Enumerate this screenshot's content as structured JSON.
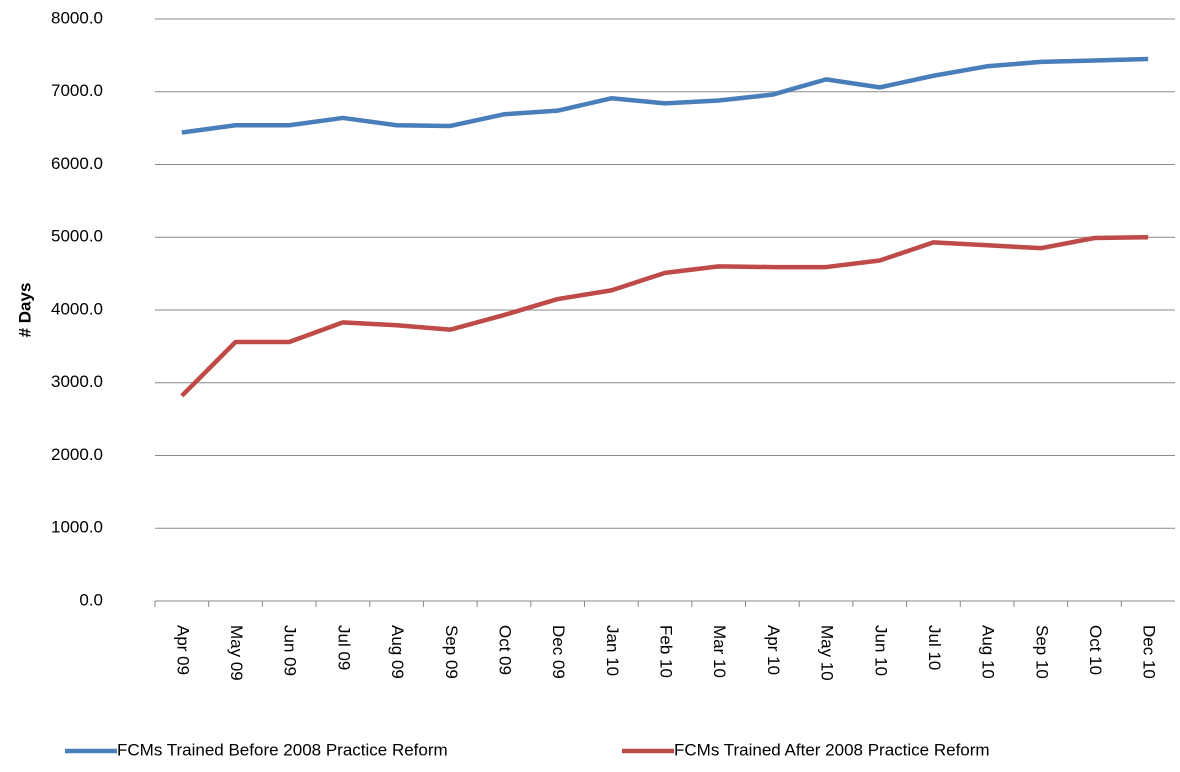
{
  "chart_data": {
    "type": "line",
    "y_label": "# Days",
    "categories": [
      "Apr 09",
      "May 09",
      "Jun 09",
      "Jul 09",
      "Aug 09",
      "Sep 09",
      "Oct 09",
      "Dec 09",
      "Jan 10",
      "Feb 10",
      "Mar 10",
      "Apr 10",
      "May 10",
      "Jun 10",
      "Jul 10",
      "Aug 10",
      "Sep 10",
      "Oct 10",
      "Dec 10"
    ],
    "series": [
      {
        "name": "FCMs Trained Before 2008 Practice Reform",
        "color": "#4a7ebb",
        "values": [
          6440,
          6540,
          6540,
          6640,
          6540,
          6530,
          6690,
          6740,
          6910,
          6840,
          6880,
          6960,
          7170,
          7060,
          7220,
          7350,
          7410,
          7430,
          7450
        ]
      },
      {
        "name": "FCMs Trained After 2008 Practice Reform",
        "color": "#be4b48",
        "values": [
          2820,
          3560,
          3560,
          3830,
          3790,
          3730,
          3930,
          4150,
          4270,
          4510,
          4600,
          4590,
          4590,
          4680,
          4930,
          4890,
          4850,
          4990,
          5000
        ]
      }
    ],
    "ylim": [
      0,
      8000
    ],
    "yticks": [
      {
        "value": 0,
        "label": "0.0"
      },
      {
        "value": 1000,
        "label": "1000.0"
      },
      {
        "value": 2000,
        "label": "2000.0"
      },
      {
        "value": 3000,
        "label": "3000.0"
      },
      {
        "value": 4000,
        "label": "4000.0"
      },
      {
        "value": 5000,
        "label": "5000.0"
      },
      {
        "value": 6000,
        "label": "6000.0"
      },
      {
        "value": 7000,
        "label": "7000.0"
      },
      {
        "value": 8000,
        "label": "8000.0"
      }
    ],
    "grid": true,
    "legend": "bottom"
  }
}
